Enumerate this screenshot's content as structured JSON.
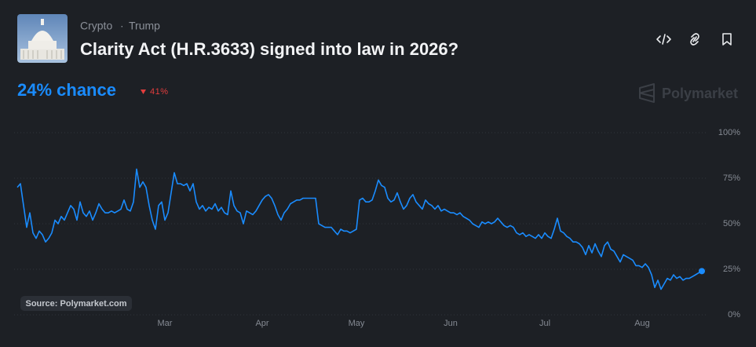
{
  "header": {
    "tags": [
      "Crypto",
      "Trump"
    ],
    "tag_separator": "·",
    "title": "Clarity Act (H.R.3633) signed into law in 2026?",
    "chance": "24% chance",
    "change": "41%",
    "brand": "Polymarket"
  },
  "chart_data": {
    "type": "line",
    "source": "Source: Polymarket.com",
    "color": "#1a8cff",
    "grid": true,
    "ylim": [
      0,
      100
    ],
    "yticks": [
      {
        "value": 0,
        "label": "0%"
      },
      {
        "value": 25,
        "label": "25%"
      },
      {
        "value": 50,
        "label": "50%"
      },
      {
        "value": 75,
        "label": "75%"
      },
      {
        "value": 100,
        "label": "100%"
      }
    ],
    "categories": [
      null,
      null,
      null,
      null,
      null,
      null,
      null,
      null,
      null,
      null,
      null,
      null,
      null,
      null,
      null,
      null,
      null,
      null,
      null,
      null,
      null,
      null,
      null,
      null,
      null,
      null,
      null,
      null,
      null,
      null,
      null,
      null,
      null,
      null,
      null,
      null,
      null,
      null,
      null,
      null,
      null,
      null,
      null,
      null,
      null,
      null,
      null,
      "Mar",
      null,
      null,
      null,
      null,
      null,
      null,
      null,
      null,
      null,
      null,
      null,
      null,
      null,
      null,
      null,
      null,
      null,
      null,
      null,
      null,
      null,
      null,
      null,
      null,
      null,
      null,
      null,
      null,
      null,
      null,
      "Apr",
      null,
      null,
      null,
      null,
      null,
      null,
      null,
      null,
      null,
      null,
      null,
      null,
      null,
      null,
      null,
      null,
      null,
      null,
      null,
      null,
      null,
      null,
      null,
      null,
      null,
      null,
      null,
      null,
      null,
      "May",
      null,
      null,
      null,
      null,
      null,
      null,
      null,
      null,
      null,
      null,
      null,
      null,
      null,
      null,
      null,
      null,
      null,
      null,
      null,
      null,
      null,
      null,
      null,
      null,
      null,
      null,
      null,
      null,
      null,
      "Jun",
      null,
      null,
      null,
      null,
      null,
      null,
      null,
      null,
      null,
      null,
      null,
      null,
      null,
      null,
      null,
      null,
      null,
      null,
      null,
      null,
      null,
      null,
      null,
      null,
      null,
      null,
      null,
      null,
      null,
      "Jul",
      null,
      null,
      null,
      null,
      null,
      null,
      null,
      null,
      null,
      null,
      null,
      null,
      null,
      null,
      null,
      null,
      null,
      null,
      null,
      null,
      null,
      null,
      null,
      null,
      null,
      null,
      null,
      null,
      null,
      null,
      "Aug",
      null,
      null,
      null,
      null,
      null,
      null,
      null,
      null,
      null,
      null,
      null,
      null,
      null,
      null,
      null,
      null,
      null,
      null,
      null
    ],
    "values": [
      70,
      72,
      60,
      48,
      56,
      45,
      42,
      46,
      44,
      40,
      42,
      45,
      52,
      50,
      54,
      52,
      56,
      60,
      58,
      52,
      62,
      56,
      54,
      57,
      52,
      56,
      61,
      58,
      56,
      56,
      57,
      56,
      57,
      58,
      63,
      58,
      57,
      62,
      80,
      70,
      73,
      70,
      60,
      52,
      47,
      60,
      62,
      52,
      56,
      67,
      78,
      72,
      72,
      71,
      72,
      68,
      72,
      62,
      58,
      60,
      57,
      59,
      58,
      61,
      57,
      59,
      56,
      55,
      68,
      60,
      57,
      56,
      50,
      57,
      56,
      55,
      57,
      60,
      63,
      65,
      66,
      64,
      60,
      55,
      52,
      56,
      58,
      61,
      62,
      63,
      63,
      64,
      64,
      64,
      64,
      64,
      50,
      49,
      48,
      48,
      48,
      46,
      44,
      47,
      46,
      46,
      45,
      46,
      47,
      63,
      64,
      62,
      62,
      63,
      68,
      74,
      71,
      70,
      64,
      62,
      63,
      67,
      62,
      58,
      60,
      64,
      66,
      62,
      60,
      58,
      63,
      61,
      60,
      58,
      60,
      57,
      58,
      57,
      56,
      56,
      55,
      56,
      54,
      53,
      52,
      50,
      49,
      48,
      51,
      50,
      51,
      50,
      51,
      53,
      51,
      49,
      48,
      49,
      48,
      45,
      44,
      45,
      43,
      44,
      43,
      42,
      44,
      42,
      45,
      43,
      42,
      47,
      53,
      46,
      45,
      43,
      42,
      40,
      40,
      39,
      37,
      33,
      38,
      34,
      39,
      35,
      32,
      38,
      40,
      36,
      35,
      32,
      29,
      33,
      32,
      31,
      30,
      27,
      27,
      26,
      28,
      26,
      22,
      15,
      19,
      14,
      17,
      20,
      19,
      22,
      20,
      21,
      19,
      20,
      20,
      21,
      22,
      23,
      24
    ]
  }
}
